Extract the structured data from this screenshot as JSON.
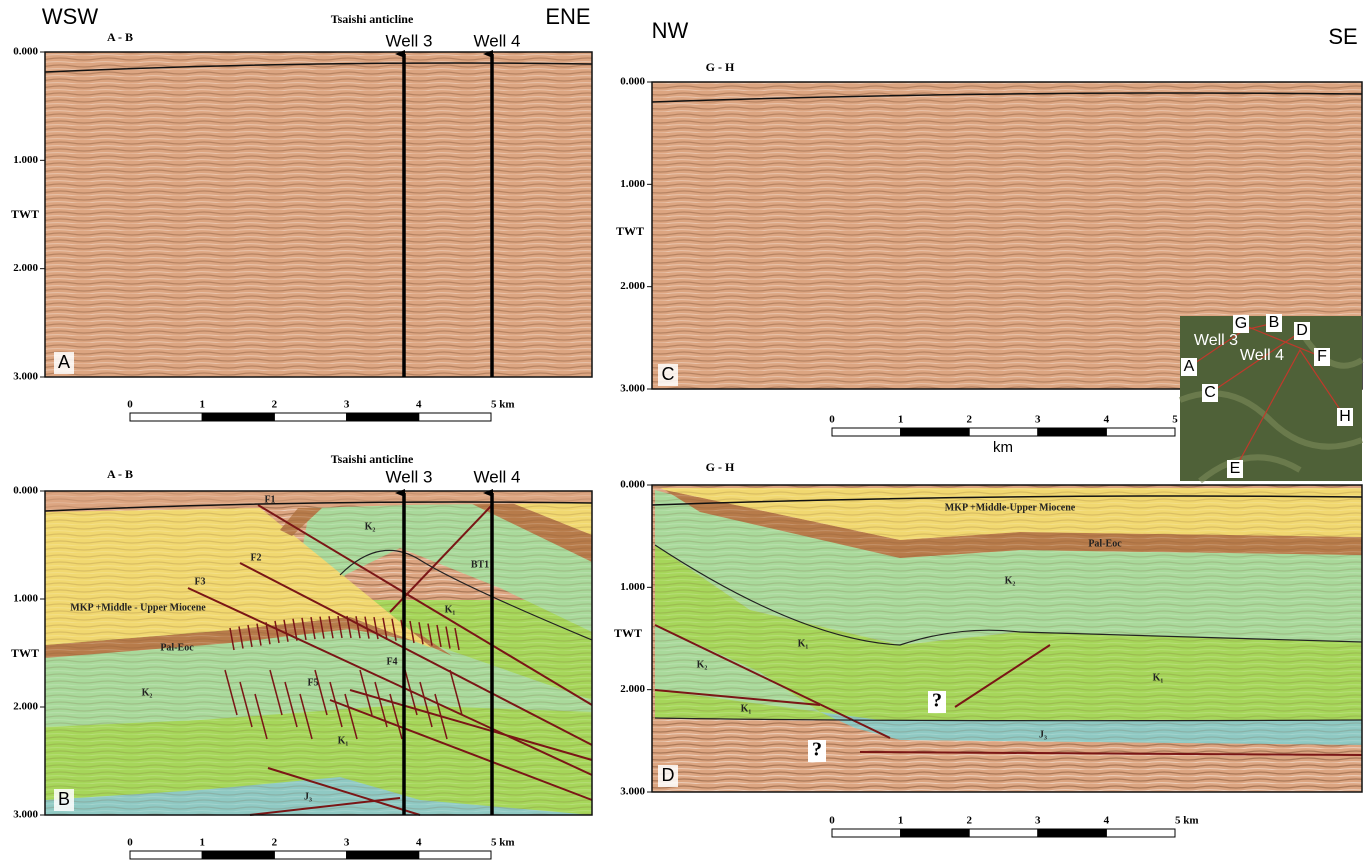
{
  "panels": [
    {
      "letter": "A",
      "section": "A - B",
      "directions": [
        "WSW",
        "ENE"
      ],
      "structure": "Tsaishi anticline",
      "wells": [
        "Well 3",
        "Well 4"
      ],
      "axis_label": "TWT",
      "twt_lim": [
        0,
        3
      ],
      "twt_ticks": [
        {
          "value": 0,
          "label": "0.000"
        },
        {
          "value": 1,
          "label": "1.000"
        },
        {
          "value": 2,
          "label": "2.000"
        },
        {
          "value": 3,
          "label": "3.000"
        }
      ],
      "scale_lim": [
        0,
        5
      ],
      "scale_ticks": [
        0,
        1,
        2,
        3,
        4,
        {
          "value": 5,
          "label": "5 km"
        }
      ]
    },
    {
      "letter": "B",
      "section": "A - B",
      "structure": "Tsaishi anticline",
      "wells": [
        "Well 3",
        "Well 4"
      ],
      "axis_label": "TWT",
      "twt_lim": [
        0,
        3
      ],
      "twt_ticks": [
        {
          "value": 0,
          "label": "0.000"
        },
        {
          "value": 1,
          "label": "1.000"
        },
        {
          "value": 2,
          "label": "2.000"
        },
        {
          "value": 3,
          "label": "3.000"
        }
      ],
      "scale_lim": [
        0,
        5
      ],
      "scale_ticks": [
        0,
        1,
        2,
        3,
        4,
        {
          "value": 5,
          "label": "5 km"
        }
      ],
      "units": [
        "F1",
        "F2",
        "F3",
        "MKP +Middle - Upper Miocene",
        "Pal-Eoc",
        "K₂",
        "BT1",
        "K₁",
        "F4",
        "F5",
        "K₂",
        "K₁",
        "J₃"
      ]
    },
    {
      "letter": "C",
      "section": "G - H",
      "directions": [
        "NW",
        "SE"
      ],
      "axis_label": "TWT",
      "twt_lim": [
        0,
        3
      ],
      "twt_ticks": [
        {
          "value": 0,
          "label": "0.000"
        },
        {
          "value": 1,
          "label": "1.000"
        },
        {
          "value": 2,
          "label": "2.000"
        },
        {
          "value": 3,
          "label": "3.000"
        }
      ],
      "scale_lim": [
        0,
        5
      ],
      "scale_ticks": [
        0,
        1,
        2,
        3,
        4,
        5
      ],
      "scale_unit": "km"
    },
    {
      "letter": "D",
      "section": "G - H",
      "axis_label": "TWT",
      "twt_lim": [
        0,
        3
      ],
      "twt_ticks": [
        {
          "value": 0,
          "label": "0.000"
        },
        {
          "value": 1,
          "label": "1.000"
        },
        {
          "value": 2,
          "label": "2.000"
        },
        {
          "value": 3,
          "label": "3.000"
        }
      ],
      "scale_lim": [
        0,
        5
      ],
      "scale_ticks": [
        0,
        1,
        2,
        3,
        4,
        {
          "value": 5,
          "label": "5 km"
        }
      ],
      "units": [
        "MKP +Middle-Upper Miocene",
        "Pal-Eoc",
        "K₂",
        "K₁",
        "K₂",
        "K₁",
        "K₁",
        "J₃",
        "?",
        "?"
      ]
    }
  ],
  "location_map": {
    "labels": [
      "G",
      "B",
      "D",
      "Well 3",
      "Well 4",
      "A",
      "F",
      "C",
      "H",
      "E"
    ]
  }
}
